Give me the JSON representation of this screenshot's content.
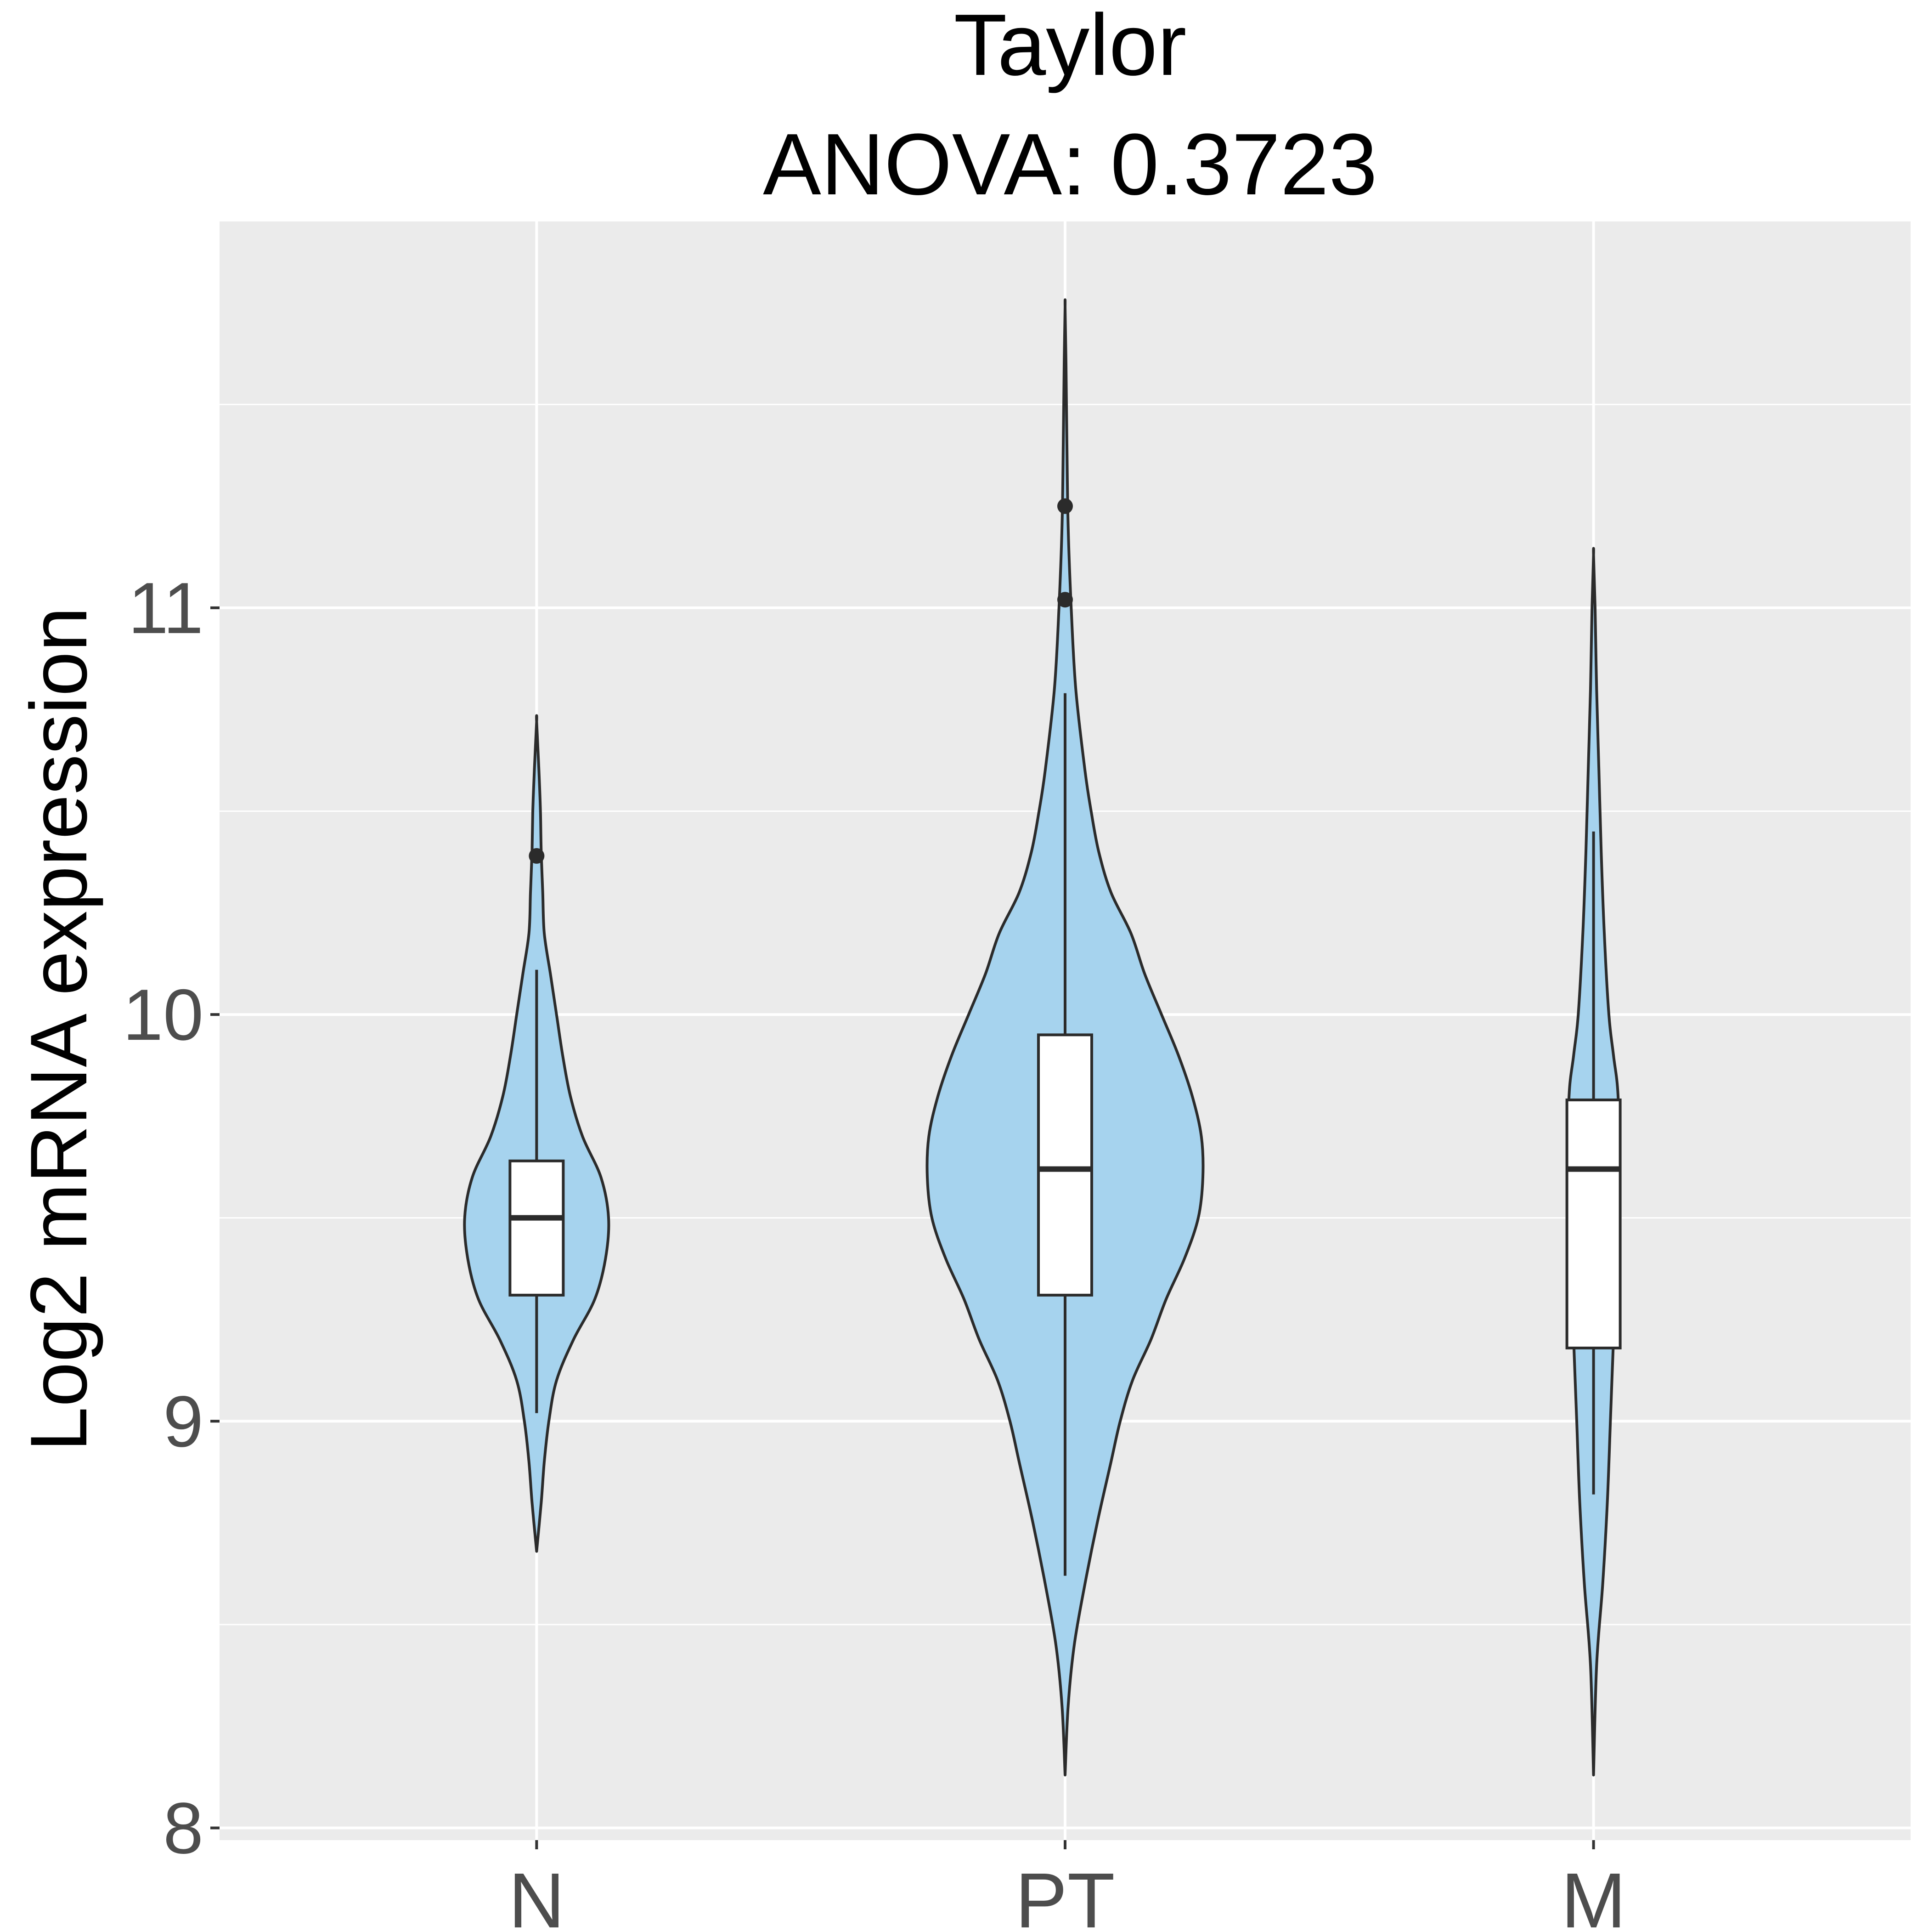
{
  "chart_data": {
    "type": "violin",
    "title": "Taylor",
    "subtitle": "ANOVA: 0.3723",
    "xlabel": "",
    "ylabel": "Log2 mRNA expression",
    "categories": [
      "N",
      "PT",
      "M"
    ],
    "ylim": [
      7.97,
      11.95
    ],
    "yticks": [
      8,
      9,
      10,
      11
    ],
    "grid": true,
    "legend": "none",
    "colors": {
      "violin_fill": "#a6d3ee",
      "outline": "#2b2b2b",
      "box_fill": "#ffffff",
      "panel_bg": "#ebebeb",
      "grid": "#ffffff",
      "tick_label": "#4d4d4d",
      "title": "#000000"
    },
    "groups": [
      {
        "name": "N",
        "min": 8.68,
        "max": 10.72,
        "box": {
          "whisker_low": 9.02,
          "q1": 9.31,
          "median": 9.5,
          "q3": 9.64,
          "whisker_high": 10.11
        },
        "outliers": [
          10.39
        ],
        "density": [
          [
            8.68,
            0.0
          ],
          [
            8.8,
            0.03
          ],
          [
            8.9,
            0.05
          ],
          [
            9.0,
            0.08
          ],
          [
            9.1,
            0.13
          ],
          [
            9.2,
            0.24
          ],
          [
            9.3,
            0.38
          ],
          [
            9.4,
            0.45
          ],
          [
            9.5,
            0.47
          ],
          [
            9.6,
            0.42
          ],
          [
            9.7,
            0.3
          ],
          [
            9.8,
            0.22
          ],
          [
            9.9,
            0.17
          ],
          [
            10.0,
            0.13
          ],
          [
            10.1,
            0.09
          ],
          [
            10.2,
            0.05
          ],
          [
            10.3,
            0.04
          ],
          [
            10.4,
            0.03
          ],
          [
            10.5,
            0.025
          ],
          [
            10.6,
            0.015
          ],
          [
            10.72,
            0.0
          ]
        ]
      },
      {
        "name": "PT",
        "min": 8.13,
        "max": 11.74,
        "box": {
          "whisker_low": 8.62,
          "q1": 9.31,
          "median": 9.62,
          "q3": 9.95,
          "whisker_high": 10.79
        },
        "outliers": [
          11.02,
          11.25
        ],
        "density": [
          [
            8.13,
            0.0
          ],
          [
            8.3,
            0.02
          ],
          [
            8.45,
            0.06
          ],
          [
            8.6,
            0.13
          ],
          [
            8.75,
            0.21
          ],
          [
            8.9,
            0.3
          ],
          [
            9.0,
            0.36
          ],
          [
            9.1,
            0.44
          ],
          [
            9.2,
            0.56
          ],
          [
            9.3,
            0.66
          ],
          [
            9.4,
            0.78
          ],
          [
            9.5,
            0.87
          ],
          [
            9.6,
            0.9
          ],
          [
            9.7,
            0.89
          ],
          [
            9.8,
            0.83
          ],
          [
            9.9,
            0.74
          ],
          [
            10.0,
            0.63
          ],
          [
            10.1,
            0.52
          ],
          [
            10.2,
            0.43
          ],
          [
            10.3,
            0.3
          ],
          [
            10.4,
            0.22
          ],
          [
            10.5,
            0.17
          ],
          [
            10.6,
            0.13
          ],
          [
            10.8,
            0.07
          ],
          [
            11.0,
            0.04
          ],
          [
            11.2,
            0.02
          ],
          [
            11.4,
            0.012
          ],
          [
            11.6,
            0.006
          ],
          [
            11.74,
            0.0
          ]
        ]
      },
      {
        "name": "M",
        "min": 8.13,
        "max": 11.13,
        "box": {
          "whisker_low": 8.82,
          "q1": 9.18,
          "median": 9.62,
          "q3": 9.79,
          "whisker_high": 10.45
        },
        "outliers": [],
        "density": [
          [
            8.13,
            0.0
          ],
          [
            8.4,
            0.02
          ],
          [
            8.6,
            0.06
          ],
          [
            8.8,
            0.09
          ],
          [
            9.0,
            0.11
          ],
          [
            9.2,
            0.13
          ],
          [
            9.4,
            0.15
          ],
          [
            9.6,
            0.17
          ],
          [
            9.8,
            0.16
          ],
          [
            9.9,
            0.13
          ],
          [
            10.0,
            0.1
          ],
          [
            10.2,
            0.07
          ],
          [
            10.4,
            0.05
          ],
          [
            10.6,
            0.035
          ],
          [
            10.8,
            0.02
          ],
          [
            11.0,
            0.01
          ],
          [
            11.13,
            0.0
          ]
        ]
      }
    ]
  }
}
